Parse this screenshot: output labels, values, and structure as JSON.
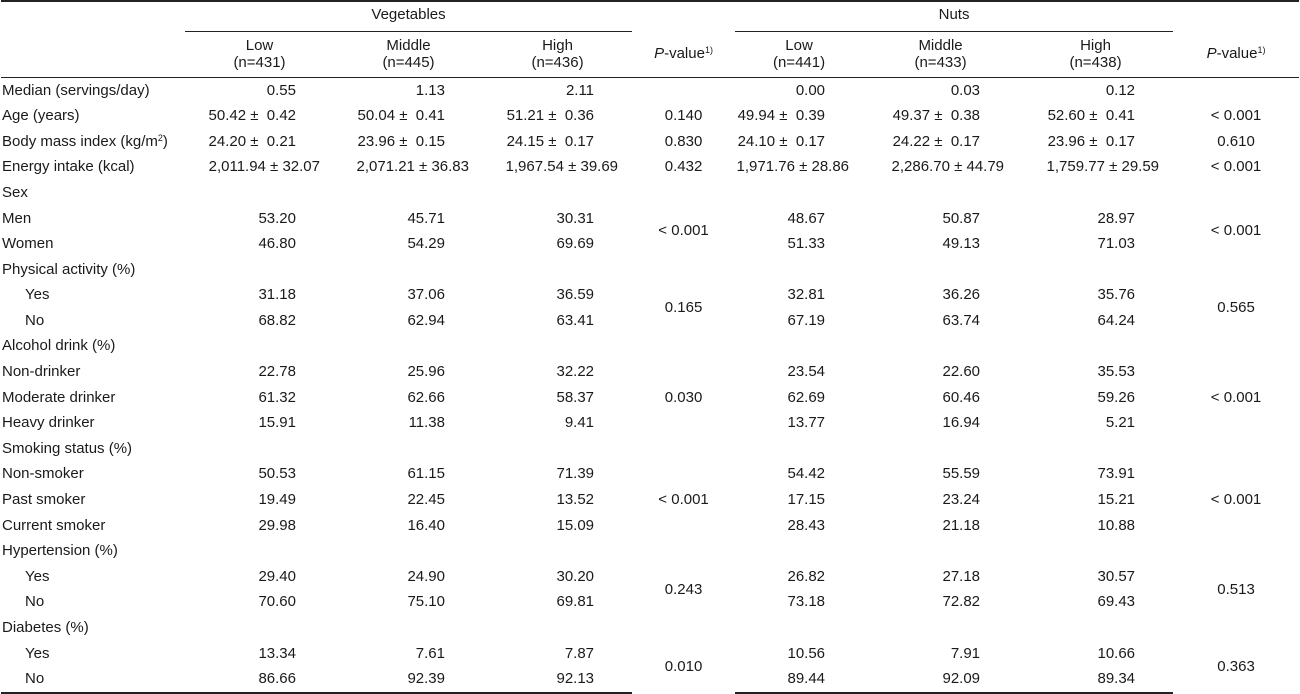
{
  "header": {
    "group_vegetables": "Vegetables",
    "group_nuts": "Nuts",
    "p_label_italic": "P",
    "p_label_rest": "-value",
    "p_footnote": "1)",
    "veg_cols": [
      {
        "name": "Low",
        "n": "(n=431)"
      },
      {
        "name": "Middle",
        "n": "(n=445)"
      },
      {
        "name": "High",
        "n": "(n=436)"
      }
    ],
    "nut_cols": [
      {
        "name": "Low",
        "n": "(n=441)"
      },
      {
        "name": "Middle",
        "n": "(n=433)"
      },
      {
        "name": "High",
        "n": "(n=438)"
      }
    ]
  },
  "rows": {
    "median": {
      "label": "Median (servings/day)",
      "v": [
        "0.55",
        "1.13",
        "2.11"
      ],
      "vp": "",
      "n": [
        "0.00",
        "0.03",
        "0.12"
      ],
      "np": ""
    },
    "age": {
      "label": "Age (years)",
      "v": [
        "50.42 ±  0.42",
        "50.04 ±  0.41",
        "51.21 ±  0.36"
      ],
      "vp": "0.140",
      "n": [
        "49.94 ±  0.39",
        "49.37 ±  0.38",
        "52.60 ±  0.41"
      ],
      "np": "< 0.001"
    },
    "bmi": {
      "label": "Body mass index (kg/m",
      "label_sup": "2",
      "label_end": ")",
      "v": [
        "24.20 ±  0.21",
        "23.96 ±  0.15",
        "24.15 ±  0.17"
      ],
      "vp": "0.830",
      "n": [
        "24.10 ±  0.17",
        "24.22 ±  0.17",
        "23.96 ±  0.17"
      ],
      "np": "0.610"
    },
    "energy": {
      "label": "Energy intake (kcal)",
      "v": [
        "2,011.94 ± 32.07",
        "2,071.21 ± 36.83",
        "1,967.54 ± 39.69"
      ],
      "vp": "0.432",
      "n": [
        "1,971.76 ± 28.86",
        "2,286.70 ± 44.79",
        "1,759.77 ± 29.59"
      ],
      "np": "< 0.001"
    },
    "sex": {
      "label": "Sex"
    },
    "men": {
      "label": "Men",
      "v": [
        "53.20",
        "45.71",
        "30.31"
      ],
      "n": [
        "48.67",
        "50.87",
        "28.97"
      ]
    },
    "women": {
      "label": "Women",
      "v": [
        "46.80",
        "54.29",
        "69.69"
      ],
      "n": [
        "51.33",
        "49.13",
        "71.03"
      ]
    },
    "sex_p": {
      "vp": "< 0.001",
      "np": "< 0.001"
    },
    "pa": {
      "label": "Physical activity (%)"
    },
    "pa_yes": {
      "label": "Yes",
      "v": [
        "31.18",
        "37.06",
        "36.59"
      ],
      "n": [
        "32.81",
        "36.26",
        "35.76"
      ]
    },
    "pa_no": {
      "label": "No",
      "v": [
        "68.82",
        "62.94",
        "63.41"
      ],
      "n": [
        "67.19",
        "63.74",
        "64.24"
      ]
    },
    "pa_p": {
      "vp": "0.165",
      "np": "0.565"
    },
    "alc": {
      "label": "Alcohol drink (%)"
    },
    "alc_non": {
      "label": "Non-drinker",
      "v": [
        "22.78",
        "25.96",
        "32.22"
      ],
      "n": [
        "23.54",
        "22.60",
        "35.53"
      ]
    },
    "alc_mod": {
      "label": "Moderate drinker",
      "v": [
        "61.32",
        "62.66",
        "58.37"
      ],
      "n": [
        "62.69",
        "60.46",
        "59.26"
      ]
    },
    "alc_heavy": {
      "label": "Heavy drinker",
      "v": [
        "15.91",
        "11.38",
        "9.41"
      ],
      "n": [
        "13.77",
        "16.94",
        "5.21"
      ]
    },
    "alc_p": {
      "vp": "0.030",
      "np": "< 0.001"
    },
    "smk": {
      "label": "Smoking status (%)"
    },
    "smk_non": {
      "label": "Non-smoker",
      "v": [
        "50.53",
        "61.15",
        "71.39"
      ],
      "n": [
        "54.42",
        "55.59",
        "73.91"
      ]
    },
    "smk_past": {
      "label": "Past smoker",
      "v": [
        "19.49",
        "22.45",
        "13.52"
      ],
      "n": [
        "17.15",
        "23.24",
        "15.21"
      ]
    },
    "smk_cur": {
      "label": "Current smoker",
      "v": [
        "29.98",
        "16.40",
        "15.09"
      ],
      "n": [
        "28.43",
        "21.18",
        "10.88"
      ]
    },
    "smk_p": {
      "vp": "< 0.001",
      "np": "< 0.001"
    },
    "htn": {
      "label": "Hypertension (%)"
    },
    "htn_yes": {
      "label": "Yes",
      "v": [
        "29.40",
        "24.90",
        "30.20"
      ],
      "n": [
        "26.82",
        "27.18",
        "30.57"
      ]
    },
    "htn_no": {
      "label": "No",
      "v": [
        "70.60",
        "75.10",
        "69.81"
      ],
      "n": [
        "73.18",
        "72.82",
        "69.43"
      ]
    },
    "htn_p": {
      "vp": "0.243",
      "np": "0.513"
    },
    "dm": {
      "label": "Diabetes (%)"
    },
    "dm_yes": {
      "label": "Yes",
      "v": [
        "13.34",
        "7.61",
        "7.87"
      ],
      "n": [
        "10.56",
        "7.91",
        "10.66"
      ]
    },
    "dm_no": {
      "label": "No",
      "v": [
        "86.66",
        "92.39",
        "92.13"
      ],
      "n": [
        "89.44",
        "92.09",
        "89.34"
      ]
    },
    "dm_p": {
      "vp": "0.010",
      "np": "0.363"
    }
  }
}
